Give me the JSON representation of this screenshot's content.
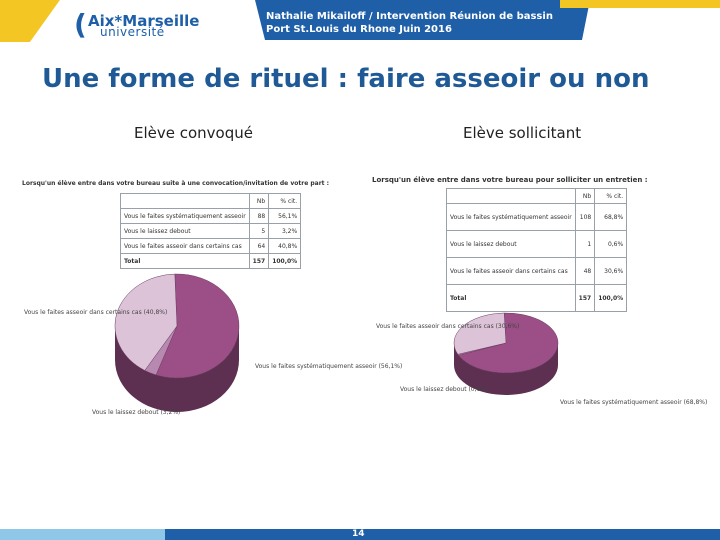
{
  "header": {
    "logo_line1": "Aix*Marseille",
    "logo_line2": "université",
    "author_line": "Nathalie Mikailoff / Intervention Réunion de bassin",
    "place_line": "Port St.Louis du Rhone Juin 2016"
  },
  "slide": {
    "title": "Une forme de rituel : faire asseoir ou non",
    "left_subtitle": "Elève convoqué",
    "right_subtitle": "Elève sollicitant",
    "page_number": "14"
  },
  "colors": {
    "accent_blue": "#1e5fa8",
    "gold": "#f3c623",
    "pie_main": "#9b4f86",
    "pie_light": "#dcc3d8",
    "pie_mid": "#b889b0"
  },
  "left_panel": {
    "caption": "Lorsqu'un élève entre dans votre bureau suite à une convocation/invitation de votre part :",
    "headers": [
      "",
      "Nb",
      "% cit."
    ],
    "rows": [
      [
        "Vous le faites systématiquement asseoir",
        "88",
        "56,1%"
      ],
      [
        "Vous le laissez debout",
        "5",
        "3,2%"
      ],
      [
        "Vous le faites asseoir dans certains cas",
        "64",
        "40,8%"
      ],
      [
        "Total",
        "157",
        "100,0%"
      ]
    ],
    "pie_labels": {
      "some_cases": "Vous le faites asseoir dans certains cas (40,8%)",
      "systematic": "Vous le faites systématiquement asseoir (56,1%)",
      "standing": "Vous le laissez debout (3,2%)"
    }
  },
  "right_panel": {
    "caption": "Lorsqu'un élève entre dans votre bureau pour solliciter un entretien :",
    "headers": [
      "",
      "Nb",
      "% cit."
    ],
    "rows": [
      [
        "Vous le faites systématiquement asseoir",
        "108",
        "68,8%"
      ],
      [
        "Vous le laissez debout",
        "1",
        "0,6%"
      ],
      [
        "Vous le faites asseoir dans certains cas",
        "48",
        "30,6%"
      ],
      [
        "Total",
        "157",
        "100,0%"
      ]
    ],
    "pie_labels": {
      "some_cases": "Vous le faites asseoir dans certains cas (30,6%)",
      "standing": "Vous le laissez debout (0,6%)",
      "systematic": "Vous le faites systématiquement asseoir (68,8%)"
    }
  },
  "chart_data": [
    {
      "type": "pie",
      "title": "Lorsqu'un élève entre dans votre bureau suite à une convocation/invitation de votre part :",
      "categories": [
        "Vous le faites systématiquement asseoir",
        "Vous le laissez debout",
        "Vous le faites asseoir dans certains cas"
      ],
      "values": [
        56.1,
        3.2,
        40.8
      ],
      "counts": [
        88,
        5,
        64
      ],
      "total": 157
    },
    {
      "type": "pie",
      "title": "Lorsqu'un élève entre dans votre bureau pour solliciter un entretien :",
      "categories": [
        "Vous le faites systématiquement asseoir",
        "Vous le laissez debout",
        "Vous le faites asseoir dans certains cas"
      ],
      "values": [
        68.8,
        0.6,
        30.6
      ],
      "counts": [
        108,
        1,
        48
      ],
      "total": 157
    }
  ]
}
